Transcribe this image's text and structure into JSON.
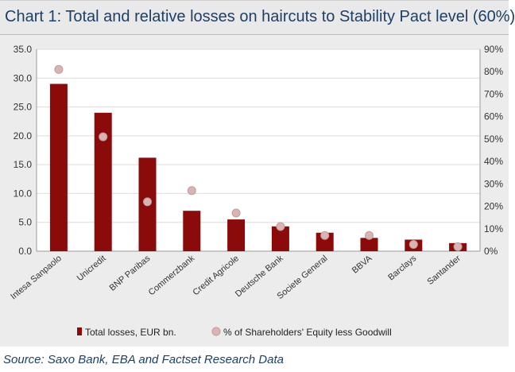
{
  "title": "Chart 1: Total and relative losses on haircuts to Stability Pact level (60%)",
  "source": "Source: Saxo Bank, EBA and Factset Research Data",
  "colors": {
    "bar": "#8b0a0a",
    "dot": "#d8b5b5",
    "dot_stroke": "#c49a9a",
    "plot_bg": "#ffffff",
    "panel_bg": "#ececec",
    "grid": "#dcdcdc",
    "title_text": "#1e3f66"
  },
  "chart_data": {
    "type": "bar",
    "title": "Chart 1: Total and relative losses on haircuts to Stability Pact level (60%)",
    "categories": [
      "Intesa Sanpaolo",
      "Unicredit",
      "BNP Paribas",
      "Commerzbank",
      "Credit Agricole",
      "Deutsche Bank",
      "Societe General",
      "BBVA",
      "Barclays",
      "Santander"
    ],
    "series": [
      {
        "name": "Total losses, EUR bn.",
        "type": "bar",
        "axis": "left",
        "values": [
          29.0,
          24.0,
          16.2,
          7.0,
          5.5,
          4.3,
          3.2,
          2.3,
          2.0,
          1.4
        ]
      },
      {
        "name": "% of Shareholders' Equity less Goodwill",
        "type": "scatter",
        "axis": "right",
        "values": [
          81,
          51,
          22,
          27,
          17,
          11,
          7,
          7,
          3,
          2
        ]
      }
    ],
    "y_left": {
      "min": 0,
      "max": 35,
      "step": 5,
      "tick_labels": [
        "0.0",
        "5.0",
        "10.0",
        "15.0",
        "20.0",
        "25.0",
        "30.0",
        "35.0"
      ]
    },
    "y_right": {
      "min": 0,
      "max": 90,
      "step": 10,
      "tick_labels": [
        "0%",
        "10%",
        "20%",
        "30%",
        "40%",
        "50%",
        "60%",
        "70%",
        "80%",
        "90%"
      ]
    },
    "legend_position": "bottom-center",
    "grid": true
  }
}
